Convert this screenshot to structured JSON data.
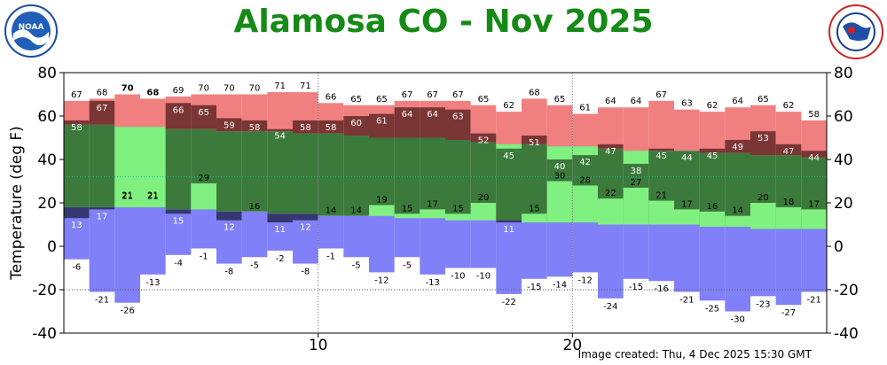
{
  "title": "Alamosa CO - Nov 2025",
  "caption": "Image created: Thu, 4 Dec 2025 15:30 GMT",
  "logos": {
    "left": "noaa-logo",
    "right": "nws-logo"
  },
  "colors": {
    "record_high": "#f08080",
    "actual_high_above_normal": "#7a3535",
    "normal_band": "#3b7a3b",
    "actual_low_above_normal": "#80f080",
    "actual_high_below_normal": "#80f080",
    "actual_low_below_normal": "#363670",
    "record_low": "#8080f8",
    "record_label": "#dd0000",
    "title": "#168a16",
    "mean_line": "#00cc99"
  },
  "chart_data": {
    "type": "bar",
    "ylabel": "Temperature (deg F)",
    "ylim": [
      -40,
      80
    ],
    "yticks": [
      -40,
      -20,
      0,
      20,
      40,
      60,
      80
    ],
    "xticks": [
      10,
      20
    ],
    "days": [
      1,
      2,
      3,
      4,
      5,
      6,
      7,
      8,
      9,
      10,
      11,
      12,
      13,
      14,
      15,
      16,
      17,
      18,
      19,
      20,
      21,
      22,
      23,
      24,
      25,
      26,
      27,
      28,
      29,
      30
    ],
    "record_high": [
      67,
      68,
      70,
      68,
      69,
      70,
      70,
      70,
      71,
      71,
      66,
      65,
      65,
      67,
      67,
      67,
      65,
      62,
      68,
      65,
      61,
      64,
      64,
      67,
      63,
      62,
      64,
      65,
      62,
      58
    ],
    "record_high_set": [
      false,
      false,
      true,
      true,
      false,
      false,
      false,
      false,
      false,
      false,
      false,
      false,
      false,
      false,
      false,
      false,
      false,
      false,
      false,
      false,
      false,
      false,
      false,
      false,
      false,
      false,
      false,
      false,
      false,
      false
    ],
    "actual_high": [
      58,
      67,
      21,
      21,
      66,
      65,
      59,
      58,
      54,
      58,
      58,
      60,
      61,
      64,
      64,
      63,
      52,
      45,
      51,
      40,
      42,
      47,
      38,
      45,
      44,
      45,
      49,
      53,
      47,
      44
    ],
    "normal_high": [
      56,
      56,
      55,
      55,
      54,
      54,
      53,
      53,
      53,
      52,
      52,
      51,
      50,
      50,
      50,
      49,
      48,
      47,
      47,
      46,
      46,
      45,
      44,
      44,
      44,
      43,
      43,
      42,
      42,
      41
    ],
    "normal_low": [
      18,
      18,
      18,
      18,
      17,
      17,
      16,
      16,
      15,
      15,
      14,
      14,
      14,
      13,
      13,
      12,
      12,
      12,
      11,
      11,
      11,
      10,
      10,
      10,
      10,
      9,
      9,
      8,
      8,
      8
    ],
    "actual_low": [
      13,
      17,
      21,
      21,
      15,
      29,
      12,
      16,
      11,
      12,
      14,
      14,
      19,
      15,
      17,
      15,
      20,
      11,
      15,
      30,
      28,
      22,
      27,
      21,
      17,
      16,
      14,
      20,
      18,
      17
    ],
    "record_low": [
      -6,
      -21,
      -26,
      -13,
      -4,
      -1,
      -8,
      -5,
      -2,
      -8,
      -1,
      -5,
      -12,
      -5,
      -13,
      -10,
      -10,
      -22,
      -15,
      -14,
      -12,
      -24,
      -15,
      -16,
      -21,
      -25,
      -30,
      -23,
      -27,
      -21
    ],
    "mean_lines": [
      32,
      -20
    ]
  }
}
